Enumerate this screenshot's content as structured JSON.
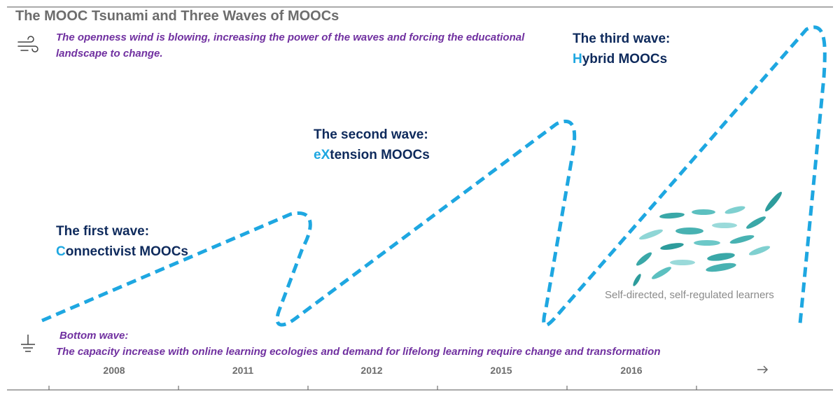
{
  "title": "The MOOC Tsunami and Three Waves of MOOCs",
  "wind_note": "The openness wind is blowing, increasing the power of the waves and forcing the educational landscape to change.",
  "waves": [
    {
      "heading": "The first wave:",
      "initial": "C",
      "rest": "onnectivist MOOCs"
    },
    {
      "heading": "The second wave:",
      "initial": "eX",
      "rest": "tension MOOCs"
    },
    {
      "heading": "The third wave:",
      "initial": "H",
      "rest": "ybrid MOOCs"
    }
  ],
  "learners_label": "Self-directed, self-regulated learners",
  "bottom_wave": {
    "heading": "Bottom wave:",
    "text": "The capacity increase with online learning ecologies and demand for lifelong learning require change and transformation"
  },
  "timeline": [
    "2008",
    "2011",
    "2012",
    "2015",
    "2016"
  ]
}
